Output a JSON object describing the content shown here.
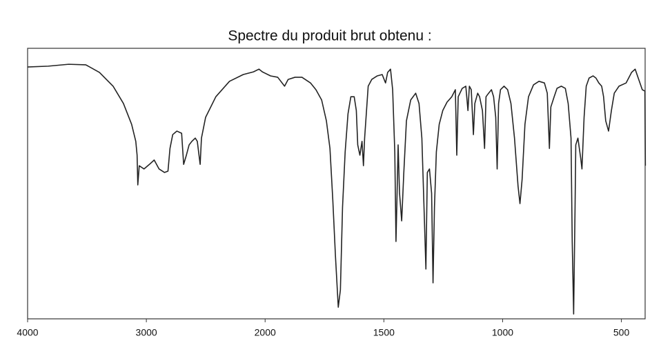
{
  "chart_data": {
    "type": "line",
    "title": "Spectre du produit brut obtenu :",
    "xlim": [
      4000,
      400
    ],
    "x_break": 2000,
    "x_break_ratio": 2,
    "ylim": [
      0,
      100
    ],
    "xticks": [
      4000,
      3000,
      2000,
      1500,
      1000,
      500
    ],
    "color": "#222222",
    "x": [
      4000,
      3827,
      3654,
      3510,
      3395,
      3280,
      3193,
      3124,
      3089,
      3078,
      3072,
      3060,
      3020,
      2974,
      2934,
      2893,
      2847,
      2818,
      2801,
      2778,
      2743,
      2703,
      2686,
      2663,
      2640,
      2617,
      2588,
      2571,
      2547,
      2536,
      2501,
      2415,
      2300,
      2184,
      2098,
      2052,
      2023,
      1977,
      1947,
      1918,
      1903,
      1874,
      1845,
      1809,
      1786,
      1762,
      1742,
      1727,
      1715,
      1704,
      1692,
      1683,
      1674,
      1663,
      1651,
      1639,
      1625,
      1616,
      1610,
      1601,
      1592,
      1586,
      1581,
      1566,
      1551,
      1528,
      1507,
      1493,
      1484,
      1472,
      1463,
      1454,
      1449,
      1443,
      1440,
      1434,
      1425,
      1416,
      1405,
      1387,
      1366,
      1352,
      1340,
      1331,
      1323,
      1317,
      1308,
      1299,
      1293,
      1287,
      1279,
      1267,
      1252,
      1234,
      1214,
      1199,
      1193,
      1187,
      1170,
      1155,
      1146,
      1140,
      1132,
      1123,
      1117,
      1105,
      1097,
      1085,
      1076,
      1070,
      1059,
      1047,
      1038,
      1029,
      1023,
      1017,
      1009,
      994,
      979,
      965,
      950,
      935,
      927,
      918,
      906,
      891,
      870,
      847,
      824,
      812,
      803,
      797,
      783,
      771,
      753,
      736,
      724,
      712,
      707,
      701,
      695,
      692,
      683,
      671,
      666,
      657,
      648,
      636,
      619,
      607,
      595,
      583,
      575,
      566,
      554,
      542,
      530,
      510,
      480,
      457,
      442,
      427,
      412,
      401,
      399
    ],
    "values": [
      93.1,
      93.4,
      94.1,
      93.9,
      91.1,
      86.0,
      79.6,
      71.9,
      65.6,
      60.5,
      49.5,
      56.6,
      55.4,
      57.1,
      58.7,
      55.4,
      54.1,
      54.6,
      63.0,
      68.1,
      69.4,
      68.6,
      57.1,
      60.5,
      64.3,
      65.6,
      66.8,
      65.6,
      57.1,
      66.8,
      74.5,
      82.1,
      87.8,
      90.3,
      91.3,
      92.3,
      91.3,
      89.8,
      89.3,
      86.0,
      88.5,
      89.3,
      89.3,
      87.2,
      84.7,
      80.9,
      73.2,
      63.0,
      43.9,
      23.5,
      4.3,
      10.7,
      41.3,
      61.7,
      75.8,
      82.1,
      82.1,
      77.0,
      64.3,
      60.5,
      65.6,
      56.6,
      66.8,
      86.0,
      88.5,
      89.8,
      90.3,
      87.2,
      91.1,
      92.3,
      84.7,
      61.7,
      28.6,
      51.5,
      64.3,
      46.4,
      36.2,
      54.1,
      73.2,
      80.9,
      83.4,
      79.6,
      66.8,
      41.3,
      18.4,
      54.1,
      55.4,
      46.4,
      13.3,
      41.3,
      61.7,
      71.9,
      77.0,
      80.1,
      82.1,
      84.7,
      60.5,
      82.1,
      85.2,
      86.0,
      77.0,
      86.0,
      84.7,
      68.1,
      79.6,
      83.4,
      82.1,
      77.0,
      63.0,
      82.1,
      83.4,
      84.7,
      82.1,
      74.5,
      55.4,
      79.6,
      84.7,
      86.0,
      84.7,
      79.6,
      66.8,
      49.0,
      42.6,
      51.5,
      71.9,
      82.1,
      86.5,
      87.8,
      87.2,
      83.4,
      63.0,
      78.3,
      82.1,
      85.2,
      86.0,
      85.2,
      79.6,
      66.8,
      28.6,
      1.8,
      41.3,
      64.3,
      66.8,
      59.2,
      55.4,
      74.5,
      86.0,
      89.0,
      89.8,
      89.0,
      87.2,
      86.0,
      82.1,
      73.2,
      69.4,
      77.0,
      83.4,
      86.0,
      87.2,
      91.1,
      92.3,
      88.5,
      84.7,
      84.2,
      56.6
    ]
  }
}
